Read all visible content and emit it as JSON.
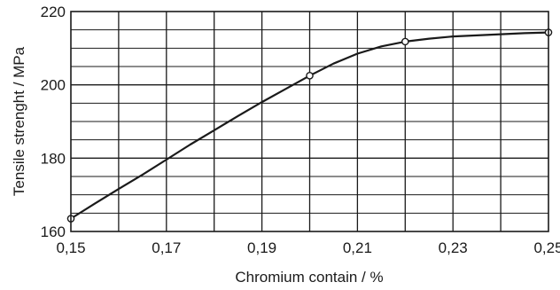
{
  "chart_data": {
    "type": "line",
    "title": "",
    "xlabel": "Chromium contain / %",
    "ylabel": "Tensile strenght / MPa",
    "xlim": [
      0.15,
      0.25
    ],
    "ylim": [
      160,
      220
    ],
    "x_ticks": [
      0.15,
      0.16,
      0.17,
      0.18,
      0.19,
      0.2,
      0.21,
      0.22,
      0.23,
      0.24,
      0.25
    ],
    "x_tick_labels": [
      "0,15",
      "",
      "0,17",
      "",
      "0,19",
      "",
      "0,21",
      "",
      "0,23",
      "",
      "0,25"
    ],
    "y_ticks": [
      160,
      165,
      170,
      175,
      180,
      185,
      190,
      195,
      200,
      205,
      210,
      215,
      220
    ],
    "y_tick_labels": [
      "160",
      "",
      "",
      "",
      "180",
      "",
      "",
      "",
      "200",
      "",
      "",
      "",
      "220"
    ],
    "grid": true,
    "series": [
      {
        "x": [
          0.15,
          0.155,
          0.16,
          0.165,
          0.17,
          0.175,
          0.18,
          0.185,
          0.19,
          0.195,
          0.2,
          0.205,
          0.21,
          0.215,
          0.22,
          0.225,
          0.23,
          0.235,
          0.24,
          0.245,
          0.25
        ],
        "y": [
          163.5,
          167.6,
          171.6,
          175.5,
          179.6,
          183.7,
          187.6,
          191.5,
          195.3,
          198.9,
          202.5,
          205.8,
          208.5,
          210.5,
          211.8,
          212.6,
          213.2,
          213.5,
          213.8,
          214.1,
          214.3
        ],
        "markers": [
          {
            "x": 0.15,
            "y": 163.5
          },
          {
            "x": 0.2,
            "y": 202.5
          },
          {
            "x": 0.22,
            "y": 211.8
          },
          {
            "x": 0.25,
            "y": 214.3
          }
        ],
        "color": "#1a1a1a"
      }
    ]
  }
}
